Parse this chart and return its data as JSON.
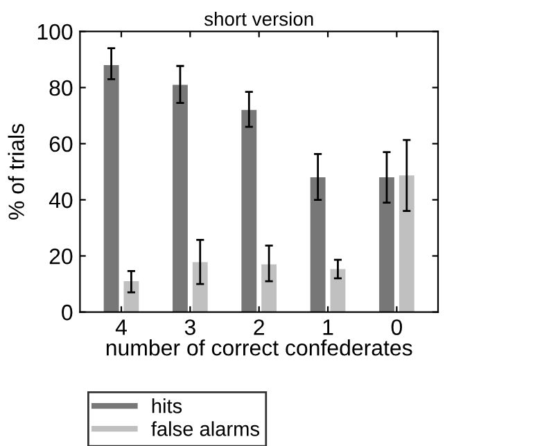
{
  "chart_data": {
    "type": "bar",
    "title": "short version",
    "xlabel": "number of correct confederates",
    "ylabel": "% of trials",
    "categories": [
      "4",
      "3",
      "2",
      "1",
      "0"
    ],
    "series": [
      {
        "name": "hits",
        "color": "#777777",
        "values": [
          88,
          81,
          72,
          48,
          48
        ],
        "errors": [
          [
            83,
            94
          ],
          [
            74.5,
            87.7
          ],
          [
            66,
            78.5
          ],
          [
            40,
            56.3
          ],
          [
            39,
            57
          ]
        ]
      },
      {
        "name": "false alarms",
        "color": "#c0c0c0",
        "values": [
          11,
          17.8,
          17,
          15.3,
          48.7
        ],
        "errors": [
          [
            7,
            14.6
          ],
          [
            10,
            25.7
          ],
          [
            11,
            23.7
          ],
          [
            12,
            18.6
          ],
          [
            36,
            61.3
          ]
        ]
      }
    ],
    "ylim": [
      0,
      100
    ],
    "yticks": [
      0,
      20,
      40,
      60,
      80,
      100
    ],
    "grid": false,
    "legend": "bottom"
  }
}
